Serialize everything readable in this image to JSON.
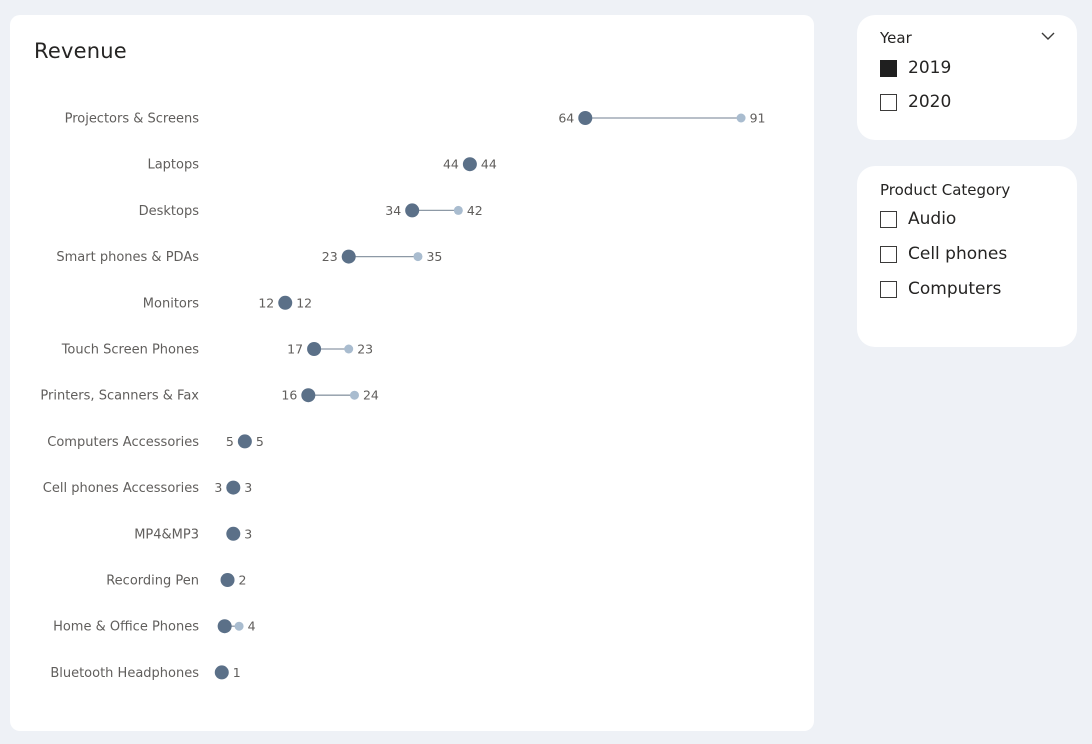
{
  "chart": {
    "title": "Revenue"
  },
  "chart_data": {
    "type": "dumbbell",
    "categories": [
      "Projectors & Screens",
      "Laptops",
      "Desktops",
      "Smart phones & PDAs",
      "Monitors",
      "Touch Screen Phones",
      "Printers, Scanners & Fax",
      "Computers Accessories",
      "Cell phones Accessories",
      "MP4&MP3",
      "Recording Pen",
      "Home & Office Phones",
      "Bluetooth Headphones"
    ],
    "series": [
      {
        "values": [
          64,
          44,
          34,
          23,
          12,
          17,
          16,
          5,
          3,
          3,
          2,
          1.5,
          1
        ],
        "color": "#5b7088"
      },
      {
        "values": [
          91,
          44,
          42,
          35,
          12,
          23,
          24,
          5,
          3,
          3,
          2,
          4,
          1
        ],
        "color": "#a9bccf"
      }
    ],
    "label_left": [
      "64",
      "44",
      "34",
      "23",
      "12",
      "17",
      "16",
      "5",
      "3",
      "",
      "",
      "",
      ""
    ],
    "label_right": [
      "91",
      "44",
      "42",
      "35",
      "12",
      "23",
      "24",
      "5",
      "3",
      "3",
      "2",
      "4",
      "1"
    ],
    "xlim": [
      0,
      100
    ],
    "grid": false
  },
  "slicers": {
    "year": {
      "title": "Year",
      "options": [
        {
          "label": "2019",
          "checked": true
        },
        {
          "label": "2020",
          "checked": false
        }
      ]
    },
    "category": {
      "title": "Product Category",
      "options": [
        {
          "label": "Audio",
          "checked": false
        },
        {
          "label": "Cell phones",
          "checked": false
        },
        {
          "label": "Computers",
          "checked": false
        }
      ]
    }
  },
  "icons": {
    "year_dropdown": "chevron-down-icon"
  }
}
